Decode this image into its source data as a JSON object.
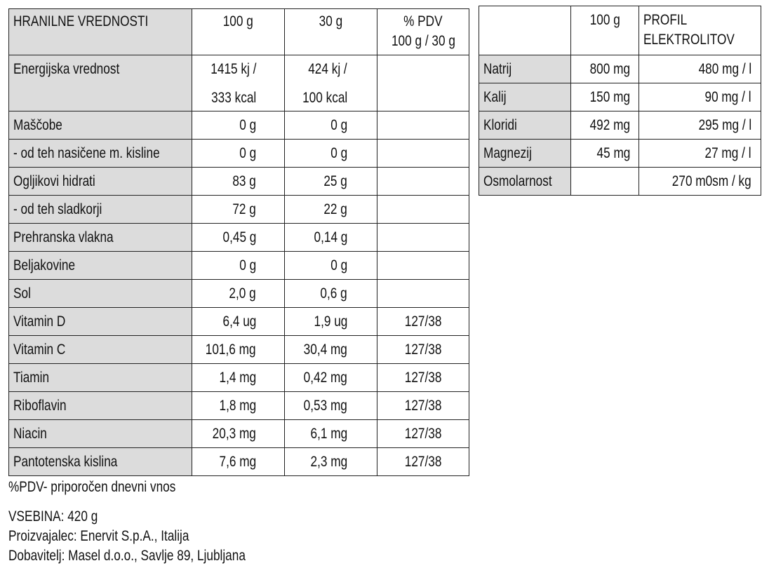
{
  "nutrition": {
    "header": {
      "label": "HRANILNE VREDNOSTI",
      "per100": "100 g",
      "per30": "30 g",
      "pdv": [
        "% PDV",
        "100 g / 30 g"
      ]
    },
    "rows": [
      {
        "label": "Energijska vrednost",
        "per100": [
          "1415 kj /",
          "333 kcal"
        ],
        "per30": [
          "424 kj /",
          "100 kcal"
        ]
      },
      {
        "label": "Maščobe",
        "per100": [
          "0 g"
        ],
        "per30": [
          "0 g"
        ]
      },
      {
        "label": "- od teh nasičene m. kisline",
        "per100": [
          "0 g"
        ],
        "per30": [
          "0 g"
        ]
      },
      {
        "label": "Ogljikovi hidrati",
        "per100": [
          "83 g"
        ],
        "per30": [
          "25 g"
        ]
      },
      {
        "label": "- od teh sladkorji",
        "per100": [
          "72 g"
        ],
        "per30": [
          "22 g"
        ]
      },
      {
        "label": "Prehranska vlakna",
        "per100": [
          "0,45 g"
        ],
        "per30": [
          "0,14 g"
        ]
      },
      {
        "label": "Beljakovine",
        "per100": [
          "0 g"
        ],
        "per30": [
          "0 g"
        ]
      },
      {
        "label": "Sol",
        "per100": [
          "2,0 g"
        ],
        "per30": [
          "0,6 g"
        ]
      },
      {
        "label": "Vitamin D",
        "per100": [
          "6,4 ug"
        ],
        "per30": [
          "1,9 ug"
        ],
        "pdv": "127/38"
      },
      {
        "label": "Vitamin C",
        "per100": [
          "101,6 mg"
        ],
        "per30": [
          "30,4 mg"
        ],
        "pdv": "127/38"
      },
      {
        "label": "Tiamin",
        "per100": [
          "1,4 mg"
        ],
        "per30": [
          "0,42 mg"
        ],
        "pdv": "127/38"
      },
      {
        "label": "Riboflavin",
        "per100": [
          "1,8 mg"
        ],
        "per30": [
          "0,53 mg"
        ],
        "pdv": "127/38"
      },
      {
        "label": "Niacin",
        "per100": [
          "20,3 mg"
        ],
        "per30": [
          "6,1 mg"
        ],
        "pdv": "127/38"
      },
      {
        "label": "Pantotenska kislina",
        "per100": [
          "7,6 mg"
        ],
        "per30": [
          "2,3 mg"
        ],
        "pdv": "127/38"
      }
    ]
  },
  "electrolytes": {
    "header": {
      "per100": "100 g",
      "profile": [
        "PROFIL",
        "ELEKTROLITOV"
      ]
    },
    "rows": [
      {
        "label": "Natrij",
        "per100": "800 mg",
        "profile": "480 mg / l"
      },
      {
        "label": "Kalij",
        "per100": "150 mg",
        "profile": "90 mg / l"
      },
      {
        "label": "Kloridi",
        "per100": "492 mg",
        "profile": "295 mg / l"
      },
      {
        "label": "Magnezij",
        "per100": "45 mg",
        "profile": "27 mg / l"
      },
      {
        "label": "Osmolarnost",
        "profile": "270 m0sm / kg"
      }
    ]
  },
  "footer": {
    "note": "%PDV- priporočen dnevni vnos",
    "content": "VSEBINA: 420 g",
    "producer": "Proizvajalec: Enervit S.p.A., Italija",
    "supplier": "Dobavitelj: Masel d.o.o., Savlje 89, Ljubljana"
  }
}
